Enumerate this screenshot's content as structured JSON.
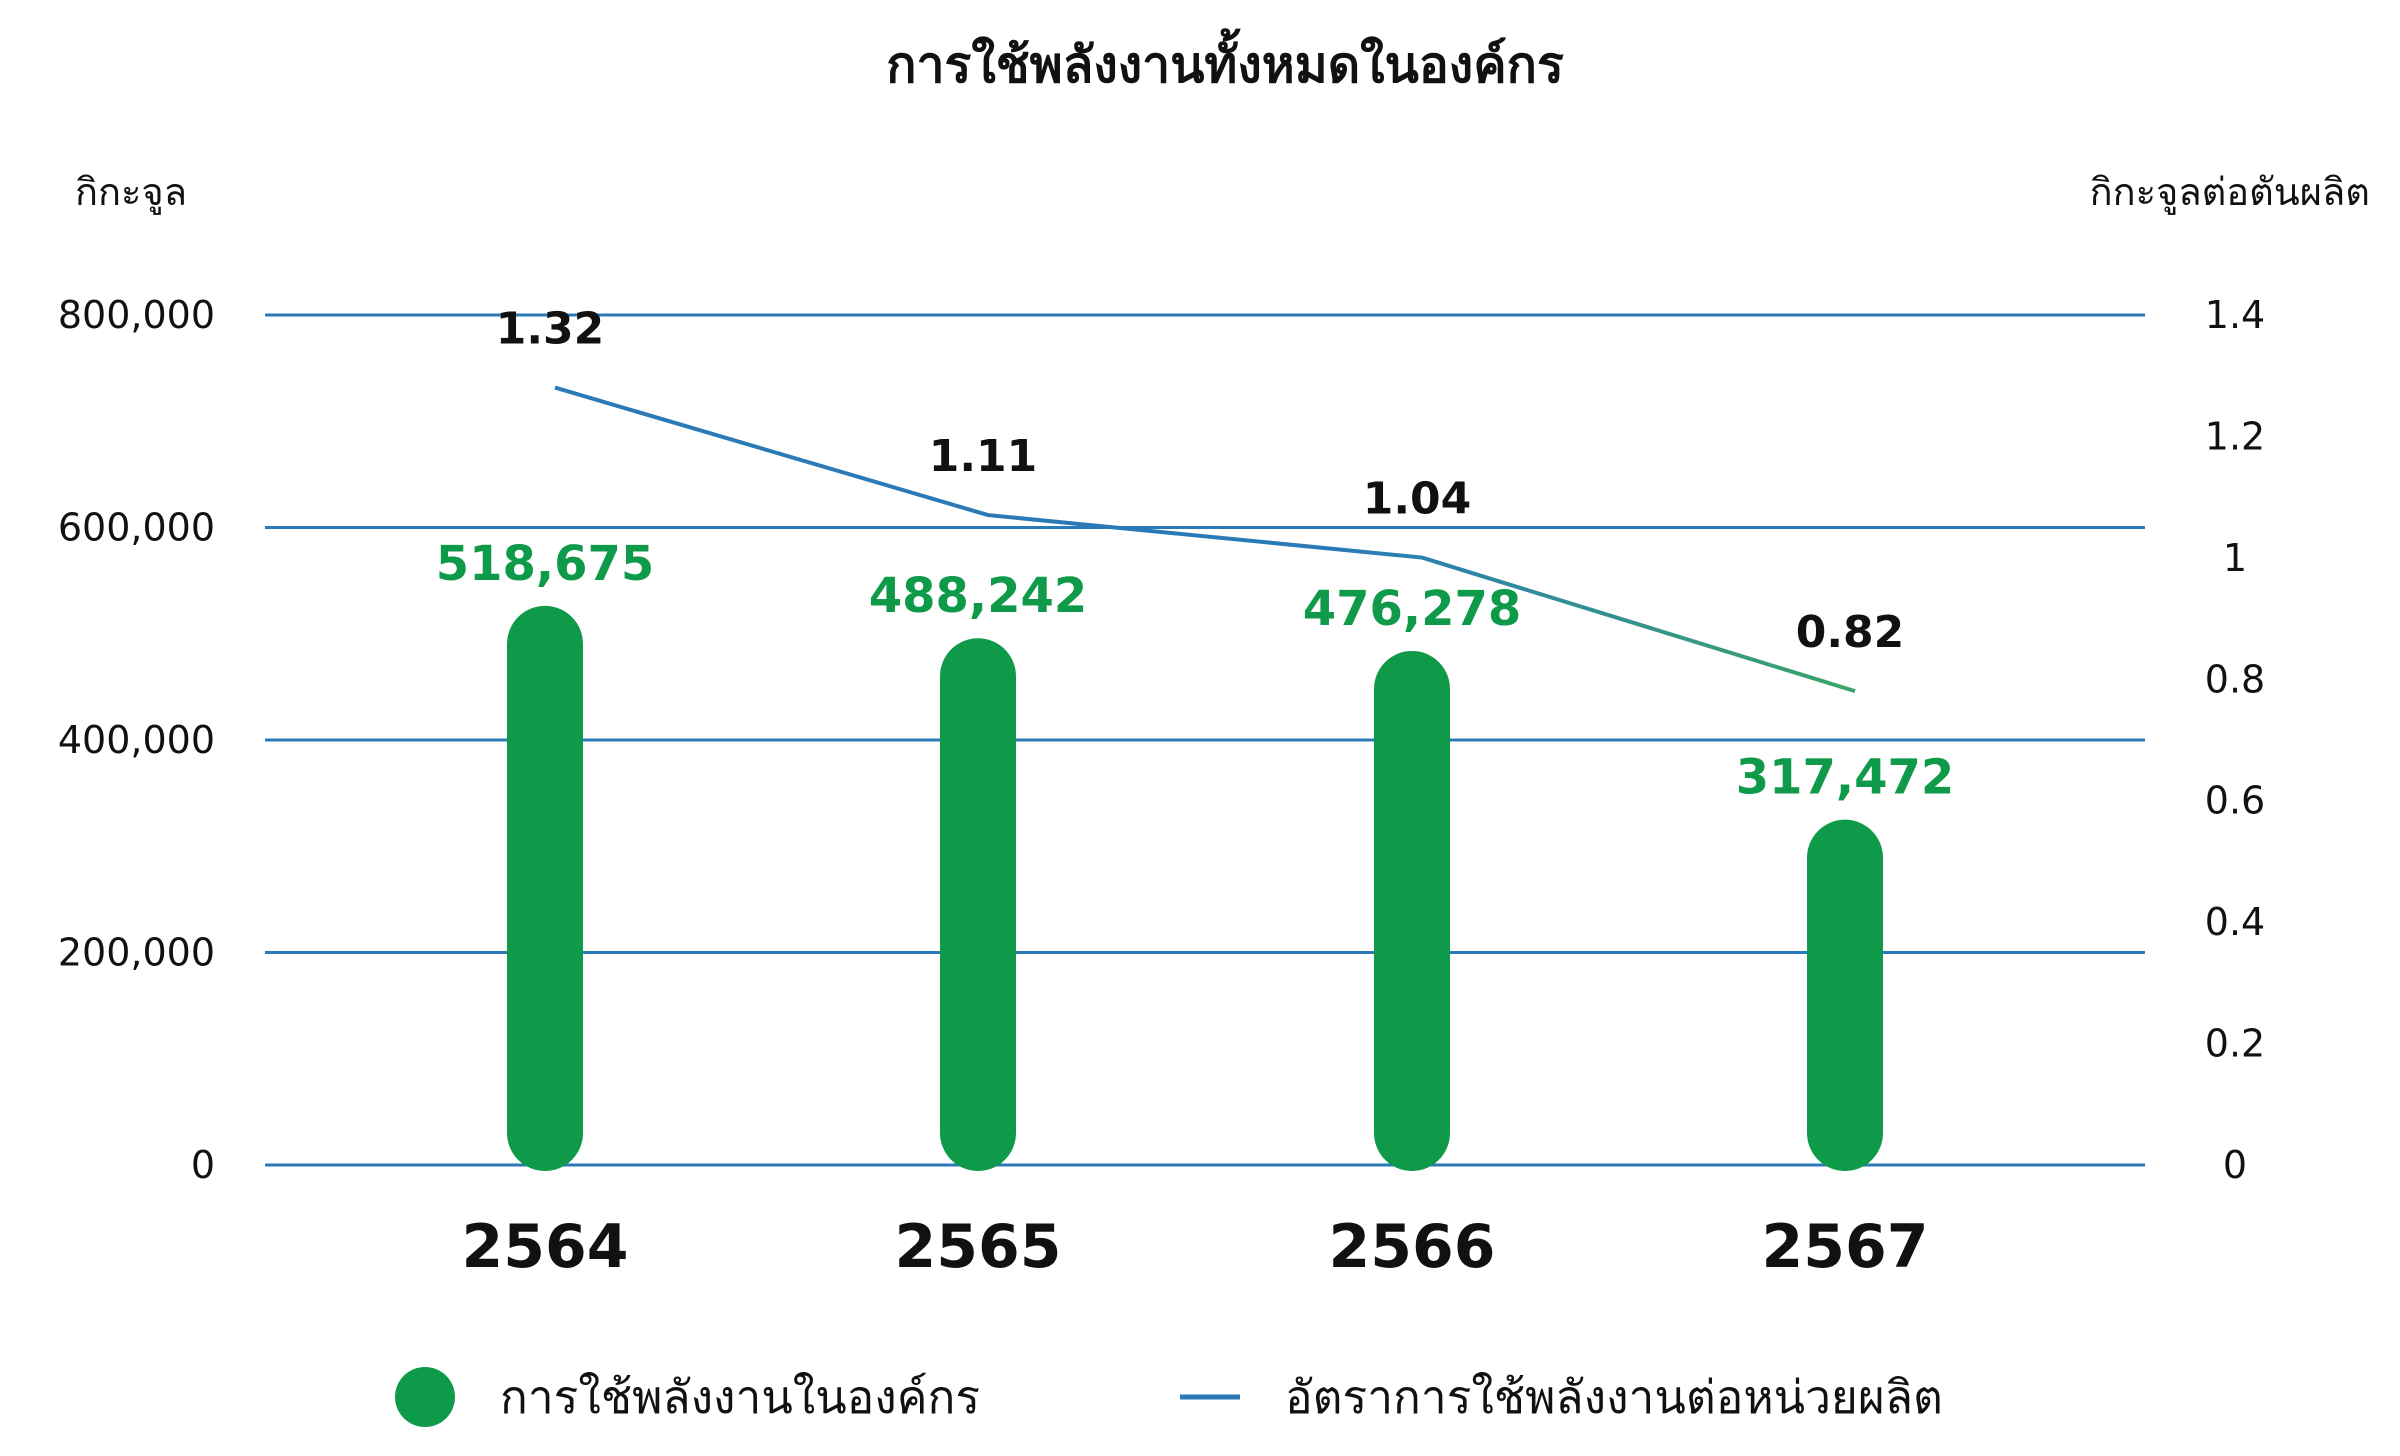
{
  "chart_data": {
    "type": "bar",
    "title": "การใช้พลังงานทั้งหมดในองค์กร",
    "ylabel_left": "กิกะจูล",
    "ylabel_right": "กิกะจูลต่อตันผลิต",
    "categories": [
      "2564",
      "2565",
      "2566",
      "2567"
    ],
    "series": [
      {
        "name": "การใช้พลังงานในองค์กร",
        "type": "bar",
        "axis": "left",
        "values": [
          518675,
          488242,
          476278,
          317472
        ],
        "labels": [
          "518,675",
          "488,242",
          "476,278",
          "317,472"
        ],
        "color": "#0f9a4a"
      },
      {
        "name": "อัตราการใช้พลังงานต่อหน่วยผลิต",
        "type": "line",
        "axis": "right",
        "values": [
          1.32,
          1.11,
          1.04,
          0.82
        ],
        "labels": [
          "1.32",
          "1.11",
          "1.04",
          "0.82"
        ],
        "color": "#2a7ab8"
      }
    ],
    "ylim_left": [
      0,
      800000
    ],
    "ylim_right": [
      0,
      1.4
    ],
    "yticks_left": [
      "0",
      "200,000",
      "400,000",
      "600,000",
      "800,000"
    ],
    "yticks_right": [
      "0",
      "0.2",
      "0.4",
      "0.6",
      "0.8",
      "1",
      "1.2",
      "1.4"
    ],
    "grid": true,
    "legend_position": "bottom"
  }
}
